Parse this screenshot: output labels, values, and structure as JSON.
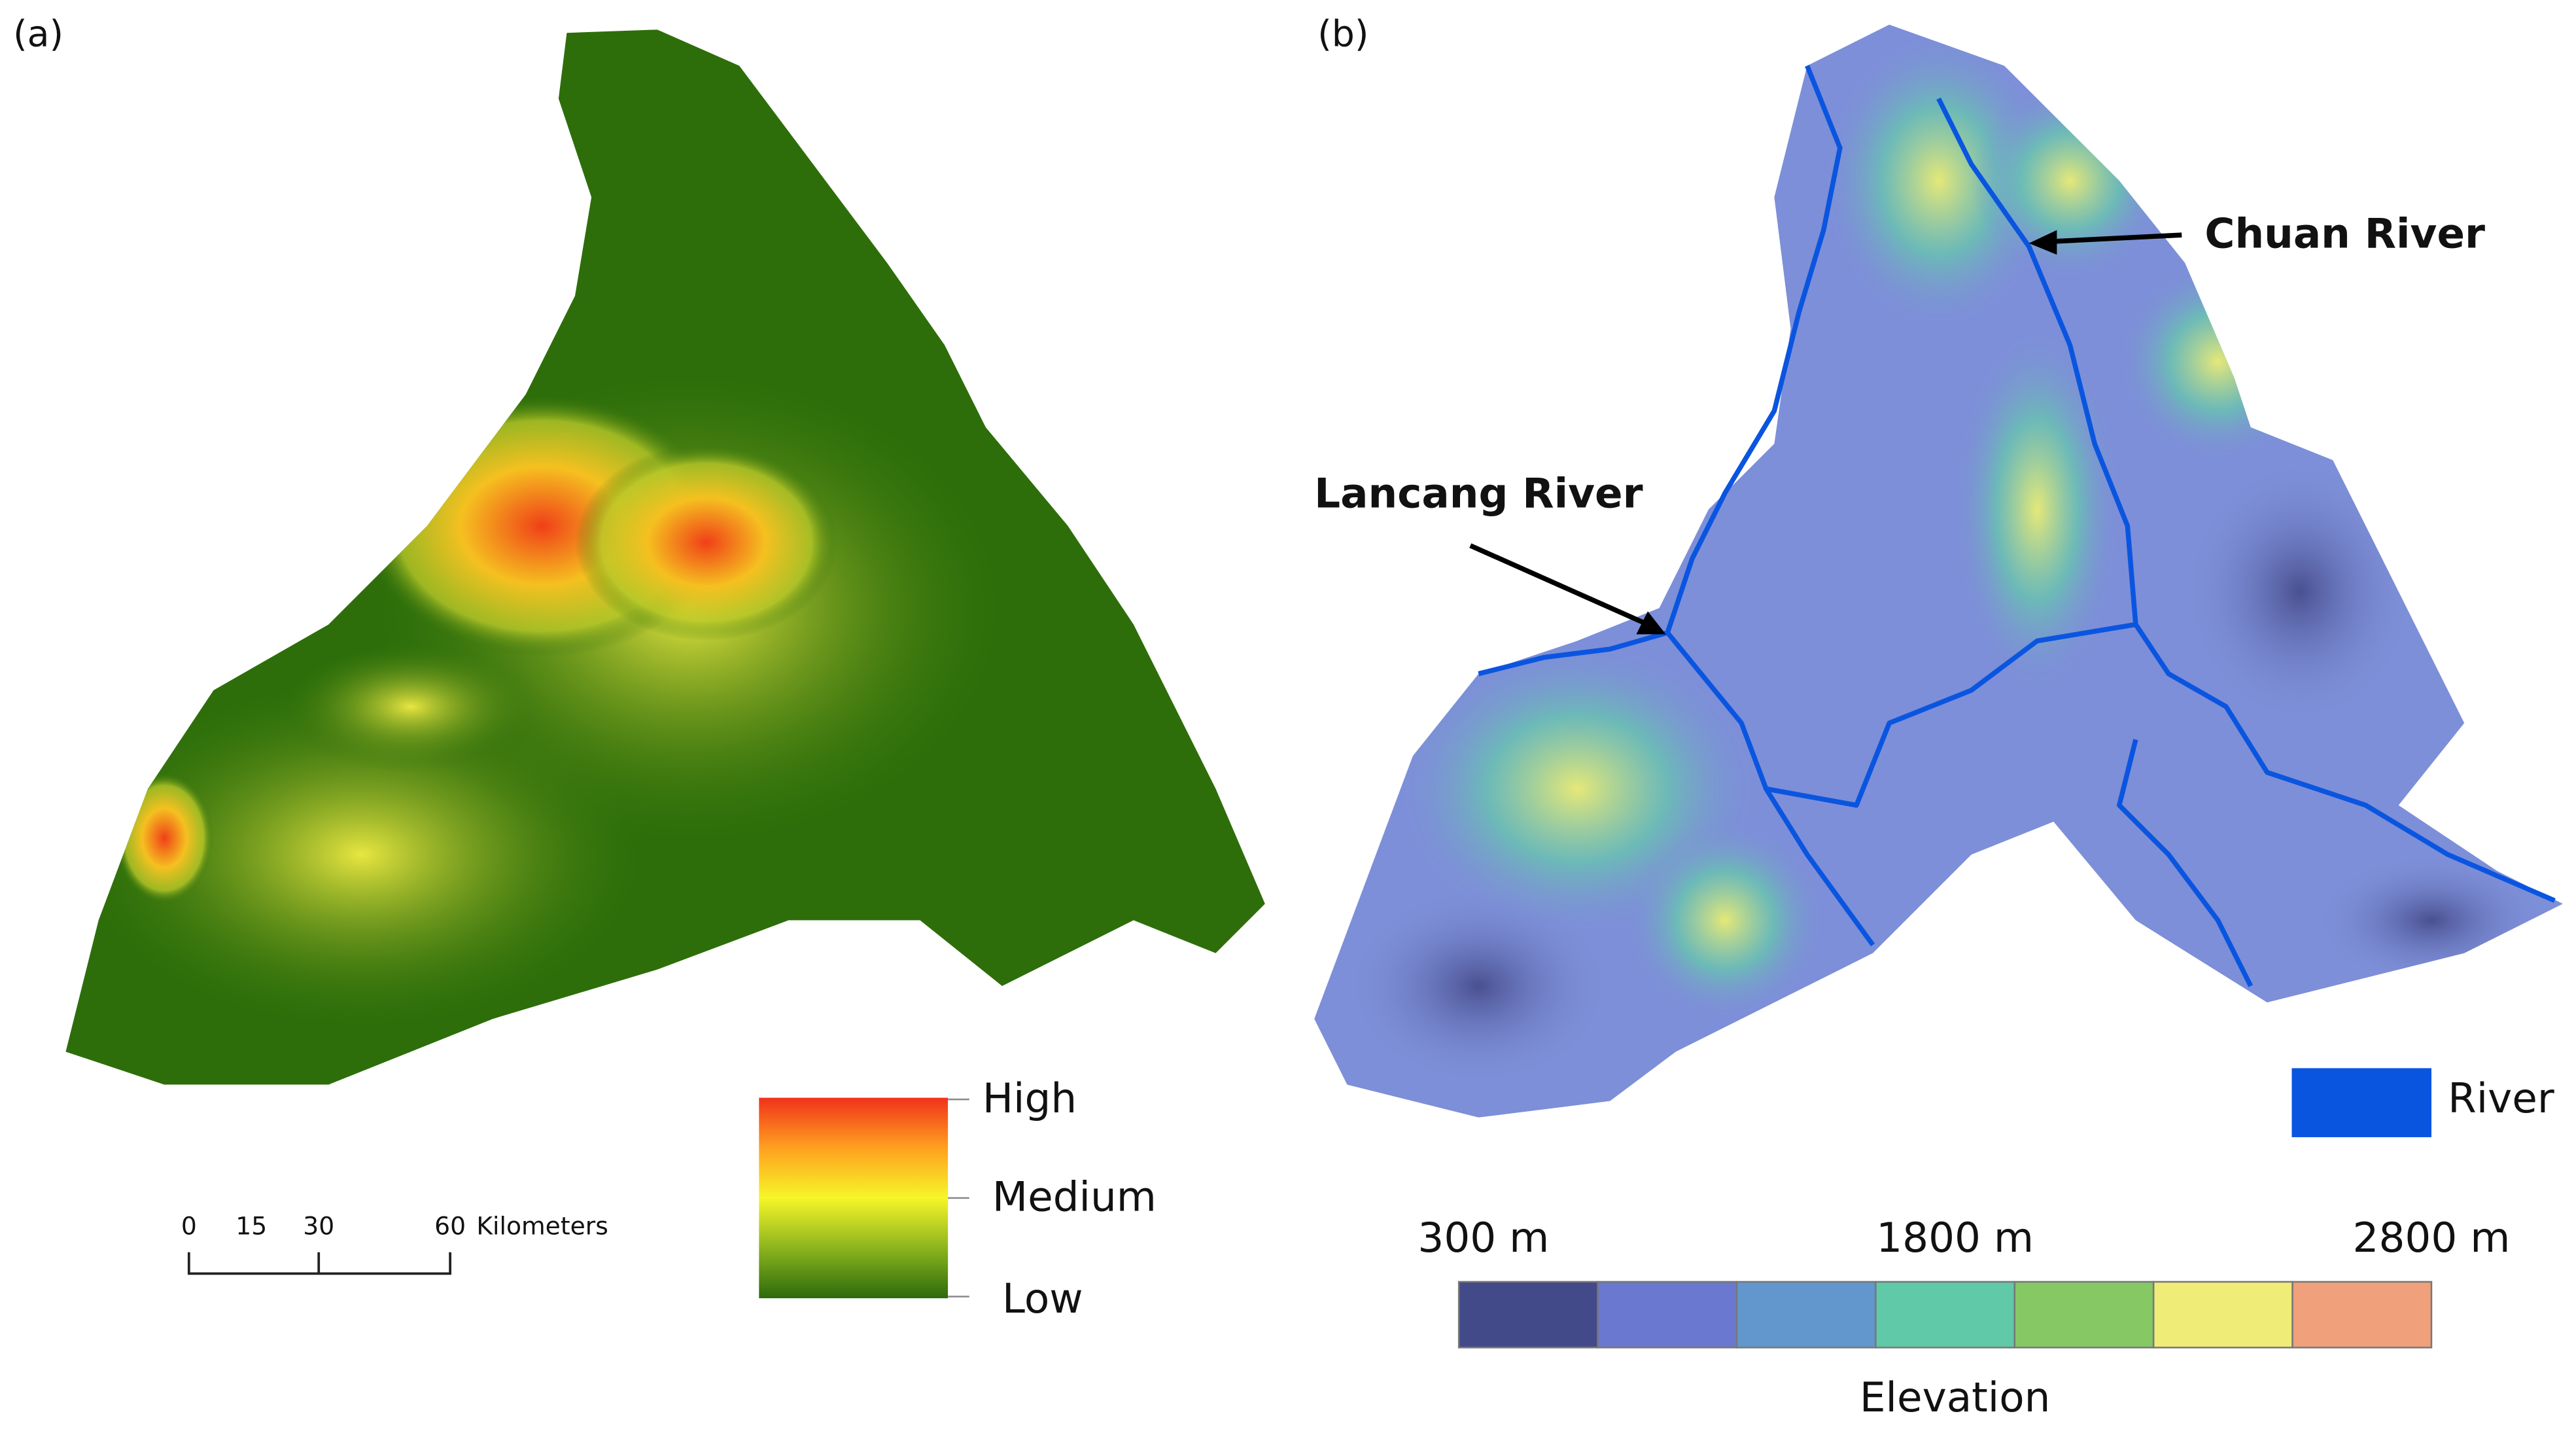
{
  "panels": {
    "a": "(a)",
    "b": "(b)"
  },
  "susceptibility_legend": {
    "high": "High",
    "medium": "Medium",
    "low": "Low"
  },
  "scale_bar": {
    "ticks": [
      "0",
      "15",
      "30",
      "60"
    ],
    "unit": "Kilometers"
  },
  "annotations": {
    "chuan": "Chuan River",
    "lancang": "Lancang River"
  },
  "river_legend": {
    "label": "River",
    "color": "#0a55e0"
  },
  "elevation_legend": {
    "labels": [
      "300 m",
      "1800 m",
      "2800 m"
    ],
    "title": "Elevation",
    "colors": [
      "#434a8a",
      "#6b78d0",
      "#6197cc",
      "#5fc9a8",
      "#86c864",
      "#f0ec78",
      "#f0a07a"
    ]
  }
}
